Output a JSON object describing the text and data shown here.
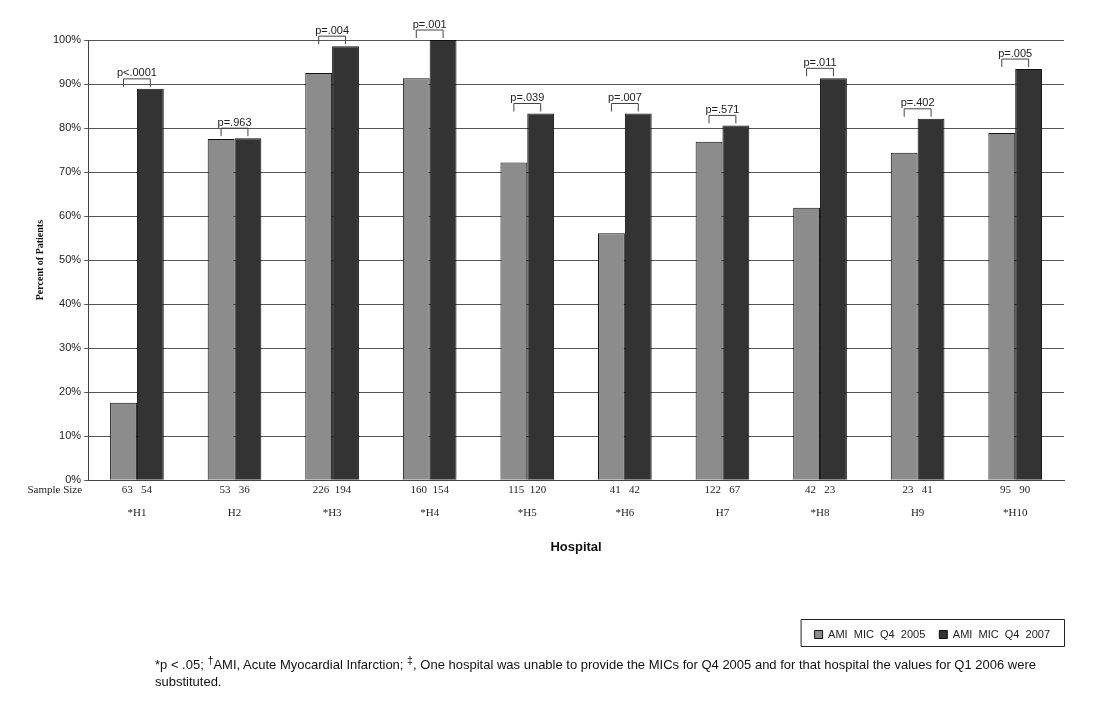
{
  "chart_data": {
    "type": "bar",
    "xlabel": "Hospital",
    "ylabel": "Percent of Patients",
    "categories": [
      "*H1",
      "H2",
      "*H3",
      "*H4",
      "*H5",
      "*H6",
      "H7",
      "*H8",
      "H9",
      "*H10"
    ],
    "series": [
      {
        "name": "AMI  MIC  Q4  2005",
        "color": "#8c8c8c",
        "values": [
          17.6,
          77.5,
          92.5,
          91.3,
          72.2,
          56.1,
          76.9,
          61.9,
          74.4,
          78.9
        ]
      },
      {
        "name": "AMI  MIC  Q4  2007",
        "color": "#333333",
        "values": [
          88.9,
          77.7,
          98.6,
          100,
          83.3,
          83.3,
          80.6,
          91.3,
          82.1,
          93.4
        ]
      }
    ],
    "ylim": [
      0,
      100
    ],
    "yticks": [
      {
        "value": 0,
        "label": "0%"
      },
      {
        "value": 10,
        "label": "10%"
      },
      {
        "value": 20,
        "label": "20%"
      },
      {
        "value": 30,
        "label": "30%"
      },
      {
        "value": 40,
        "label": "40%"
      },
      {
        "value": 50,
        "label": "50%"
      },
      {
        "value": 60,
        "label": "60%"
      },
      {
        "value": 70,
        "label": "70%"
      },
      {
        "value": 80,
        "label": "80%"
      },
      {
        "value": 90,
        "label": "90%"
      },
      {
        "value": 100,
        "label": "100%"
      }
    ],
    "grid": "y",
    "legend": "bottom right",
    "annotations": [
      "Sample Size",
      "*p < .05; $^{†}$AMI, Acute Myocardial Infarction; $^{‡}$, One hospital was unable to provide the MICs for Q4 2005 and for that hospital the values for Q1 2006 were substituted.",
      "p<.0001",
      "p=.963",
      "p=.004",
      "p=.001",
      "p=.039",
      "p=.007",
      "p=.571",
      "p=.011",
      "p=.402",
      "p=.005",
      {
        "text": "63   54",
        "x": "*H1",
        "y": 0
      },
      {
        "text": "53   36",
        "x": "H2",
        "y": 0
      },
      {
        "text": "226  194",
        "x": "*H3",
        "y": 0
      },
      {
        "text": "160  154",
        "x": "*H4",
        "y": 0
      },
      {
        "text": "115  120",
        "x": "*H5",
        "y": 0
      },
      {
        "text": "41   42",
        "x": "*H6",
        "y": 0
      },
      {
        "text": "122   67",
        "x": "H7",
        "y": 0
      },
      {
        "text": "42   23",
        "x": "*H8",
        "y": 0
      },
      {
        "text": "23   41",
        "x": "H9",
        "y": 0
      },
      {
        "text": "95   90",
        "x": "*H10",
        "y": 0
      }
    ]
  }
}
